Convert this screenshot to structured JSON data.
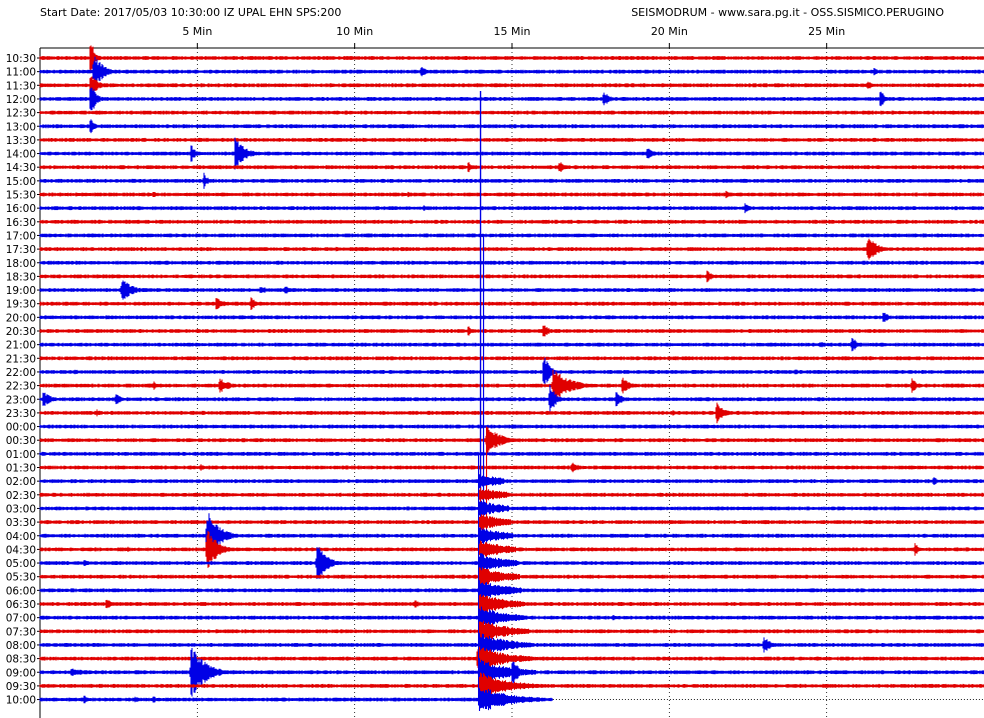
{
  "header": {
    "start_info": "Start Date: 2017/05/03 10:30:00 IZ UPAL  EHN SPS:200",
    "credits": "SEISMODRUM - www.sara.pg.it - OSS.SISMICO.PERUGINO"
  },
  "chart_data": {
    "type": "helicorder",
    "x_unit": "Min",
    "x_range": [
      0,
      30
    ],
    "x_ticks": [
      5,
      10,
      15,
      20,
      25
    ],
    "x_tick_labels": [
      "5 Min",
      "10 Min",
      "15 Min",
      "20 Min",
      "25 Min"
    ],
    "grid": "vertical dotted lines at each tick",
    "trace_colors": [
      "#e00000",
      "#0000e6"
    ],
    "rows": [
      "10:30",
      "11:00",
      "11:30",
      "12:00",
      "12:30",
      "13:00",
      "13:30",
      "14:00",
      "14:30",
      "15:00",
      "15:30",
      "16:00",
      "16:30",
      "17:00",
      "17:30",
      "18:00",
      "18:30",
      "19:00",
      "19:30",
      "20:00",
      "20:30",
      "21:00",
      "21:30",
      "22:00",
      "22:30",
      "23:00",
      "23:30",
      "00:00",
      "00:30",
      "01:00",
      "01:30",
      "02:00",
      "02:30",
      "03:00",
      "03:30",
      "04:00",
      "04:30",
      "05:00",
      "05:30",
      "06:00",
      "06:30",
      "07:00",
      "07:30",
      "08:00",
      "08:30",
      "09:00",
      "09:30",
      "10:00"
    ],
    "recording_end_minute": 16.3,
    "events": [
      {
        "row": "10:30",
        "minute": 1.6,
        "amp": 22,
        "dur": 0.4
      },
      {
        "row": "11:00",
        "minute": 1.7,
        "amp": 18,
        "dur": 1.0
      },
      {
        "row": "11:00",
        "minute": 12.1,
        "amp": 7,
        "dur": 0.5
      },
      {
        "row": "11:00",
        "minute": 26.5,
        "amp": 5,
        "dur": 0.4
      },
      {
        "row": "11:30",
        "minute": 1.6,
        "amp": 15,
        "dur": 0.6
      },
      {
        "row": "11:30",
        "minute": 26.3,
        "amp": 6,
        "dur": 0.4
      },
      {
        "row": "12:00",
        "minute": 1.6,
        "amp": 20,
        "dur": 0.5
      },
      {
        "row": "12:00",
        "minute": 17.9,
        "amp": 9,
        "dur": 0.6
      },
      {
        "row": "12:00",
        "minute": 26.7,
        "amp": 12,
        "dur": 0.4
      },
      {
        "row": "13:00",
        "minute": 1.6,
        "amp": 9,
        "dur": 0.4
      },
      {
        "row": "13:00",
        "minute": 11.5,
        "amp": 3,
        "dur": 0.5
      },
      {
        "row": "14:00",
        "minute": 4.8,
        "amp": 10,
        "dur": 0.4
      },
      {
        "row": "14:00",
        "minute": 6.2,
        "amp": 18,
        "dur": 0.9
      },
      {
        "row": "14:00",
        "minute": 19.3,
        "amp": 7,
        "dur": 0.6
      },
      {
        "row": "14:30",
        "minute": 13.6,
        "amp": 6,
        "dur": 0.5
      },
      {
        "row": "14:30",
        "minute": 16.5,
        "amp": 7,
        "dur": 0.5
      },
      {
        "row": "15:00",
        "minute": 5.2,
        "amp": 9,
        "dur": 0.4
      },
      {
        "row": "15:30",
        "minute": 3.6,
        "amp": 4,
        "dur": 0.4
      },
      {
        "row": "15:30",
        "minute": 11.7,
        "amp": 4,
        "dur": 0.5
      },
      {
        "row": "15:30",
        "minute": 21.8,
        "amp": 4,
        "dur": 0.5
      },
      {
        "row": "16:00",
        "minute": 12.2,
        "amp": 3,
        "dur": 0.4
      },
      {
        "row": "16:00",
        "minute": 22.4,
        "amp": 6,
        "dur": 0.4
      },
      {
        "row": "17:30",
        "minute": 9.4,
        "amp": 3,
        "dur": 0.4
      },
      {
        "row": "17:30",
        "minute": 26.3,
        "amp": 16,
        "dur": 0.8
      },
      {
        "row": "18:30",
        "minute": 21.2,
        "amp": 7,
        "dur": 0.5
      },
      {
        "row": "19:00",
        "minute": 2.6,
        "amp": 12,
        "dur": 1.0
      },
      {
        "row": "19:00",
        "minute": 7.0,
        "amp": 5,
        "dur": 0.7
      },
      {
        "row": "19:00",
        "minute": 7.8,
        "amp": 5,
        "dur": 0.5
      },
      {
        "row": "19:30",
        "minute": 5.6,
        "amp": 9,
        "dur": 0.6
      },
      {
        "row": "19:30",
        "minute": 6.7,
        "amp": 8,
        "dur": 0.5
      },
      {
        "row": "20:00",
        "minute": 26.8,
        "amp": 8,
        "dur": 0.4
      },
      {
        "row": "20:30",
        "minute": 13.6,
        "amp": 6,
        "dur": 0.5
      },
      {
        "row": "20:30",
        "minute": 16.0,
        "amp": 9,
        "dur": 0.5
      },
      {
        "row": "21:00",
        "minute": 24.8,
        "amp": 4,
        "dur": 0.4
      },
      {
        "row": "21:00",
        "minute": 25.8,
        "amp": 9,
        "dur": 0.5
      },
      {
        "row": "22:00",
        "minute": 1.1,
        "amp": 4,
        "dur": 0.4
      },
      {
        "row": "22:00",
        "minute": 16.0,
        "amp": 22,
        "dur": 0.5
      },
      {
        "row": "22:00",
        "minute": 24.0,
        "amp": 4,
        "dur": 0.4
      },
      {
        "row": "22:30",
        "minute": 3.6,
        "amp": 5,
        "dur": 0.4
      },
      {
        "row": "22:30",
        "minute": 5.7,
        "amp": 8,
        "dur": 1.0
      },
      {
        "row": "22:30",
        "minute": 16.3,
        "amp": 18,
        "dur": 1.6
      },
      {
        "row": "22:30",
        "minute": 18.5,
        "amp": 9,
        "dur": 0.8
      },
      {
        "row": "22:30",
        "minute": 27.7,
        "amp": 8,
        "dur": 0.6
      },
      {
        "row": "23:00",
        "minute": 0.1,
        "amp": 8,
        "dur": 0.8
      },
      {
        "row": "23:00",
        "minute": 2.4,
        "amp": 7,
        "dur": 0.5
      },
      {
        "row": "23:00",
        "minute": 16.2,
        "amp": 18,
        "dur": 0.5
      },
      {
        "row": "23:00",
        "minute": 18.3,
        "amp": 9,
        "dur": 0.6
      },
      {
        "row": "23:30",
        "minute": 1.8,
        "amp": 4,
        "dur": 0.5
      },
      {
        "row": "23:30",
        "minute": 11.4,
        "amp": 3,
        "dur": 0.4
      },
      {
        "row": "23:30",
        "minute": 20.1,
        "amp": 4,
        "dur": 0.5
      },
      {
        "row": "23:30",
        "minute": 21.5,
        "amp": 12,
        "dur": 0.7
      },
      {
        "row": "00:30",
        "minute": 14.2,
        "amp": 14,
        "dur": 1.4
      },
      {
        "row": "01:00",
        "minute": 5.6,
        "amp": 3,
        "dur": 0.4
      },
      {
        "row": "01:30",
        "minute": 5.1,
        "amp": 4,
        "dur": 0.4
      },
      {
        "row": "01:30",
        "minute": 16.9,
        "amp": 7,
        "dur": 0.6
      },
      {
        "row": "02:00",
        "minute": 28.4,
        "amp": 6,
        "dur": 0.3
      },
      {
        "row": "04:00",
        "minute": 5.3,
        "amp": 28,
        "dur": 1.1
      },
      {
        "row": "04:30",
        "minute": 5.3,
        "amp": 22,
        "dur": 1.0
      },
      {
        "row": "04:30",
        "minute": 2.8,
        "amp": 3,
        "dur": 0.4
      },
      {
        "row": "04:30",
        "minute": 27.8,
        "amp": 10,
        "dur": 0.3
      },
      {
        "row": "05:00",
        "minute": 8.8,
        "amp": 22,
        "dur": 0.9
      },
      {
        "row": "05:00",
        "minute": 1.4,
        "amp": 4,
        "dur": 0.4
      },
      {
        "row": "06:30",
        "minute": 2.1,
        "amp": 7,
        "dur": 0.5
      },
      {
        "row": "06:30",
        "minute": 11.9,
        "amp": 5,
        "dur": 0.5
      },
      {
        "row": "06:30",
        "minute": 5.2,
        "amp": 3,
        "dur": 0.4
      },
      {
        "row": "07:00",
        "minute": 18.2,
        "amp": 4,
        "dur": 0.4
      },
      {
        "row": "08:00",
        "minute": 23.0,
        "amp": 10,
        "dur": 0.6
      },
      {
        "row": "08:30",
        "minute": 13.9,
        "amp": 16,
        "dur": 0.8
      },
      {
        "row": "09:00",
        "minute": 4.8,
        "amp": 30,
        "dur": 1.3
      },
      {
        "row": "09:00",
        "minute": 1.0,
        "amp": 5,
        "dur": 1.2
      },
      {
        "row": "09:00",
        "minute": 15.0,
        "amp": 16,
        "dur": 0.6
      },
      {
        "row": "10:00",
        "minute": 1.4,
        "amp": 5,
        "dur": 0.4
      },
      {
        "row": "10:00",
        "minute": 3.0,
        "amp": 4,
        "dur": 0.5
      },
      {
        "row": "10:00",
        "minute": 3.6,
        "amp": 4,
        "dur": 0.4
      }
    ],
    "main_shock": {
      "minute": 14.0,
      "start_row": "12:00",
      "end_row": "10:00",
      "coda_minutes": 1.9
    }
  }
}
